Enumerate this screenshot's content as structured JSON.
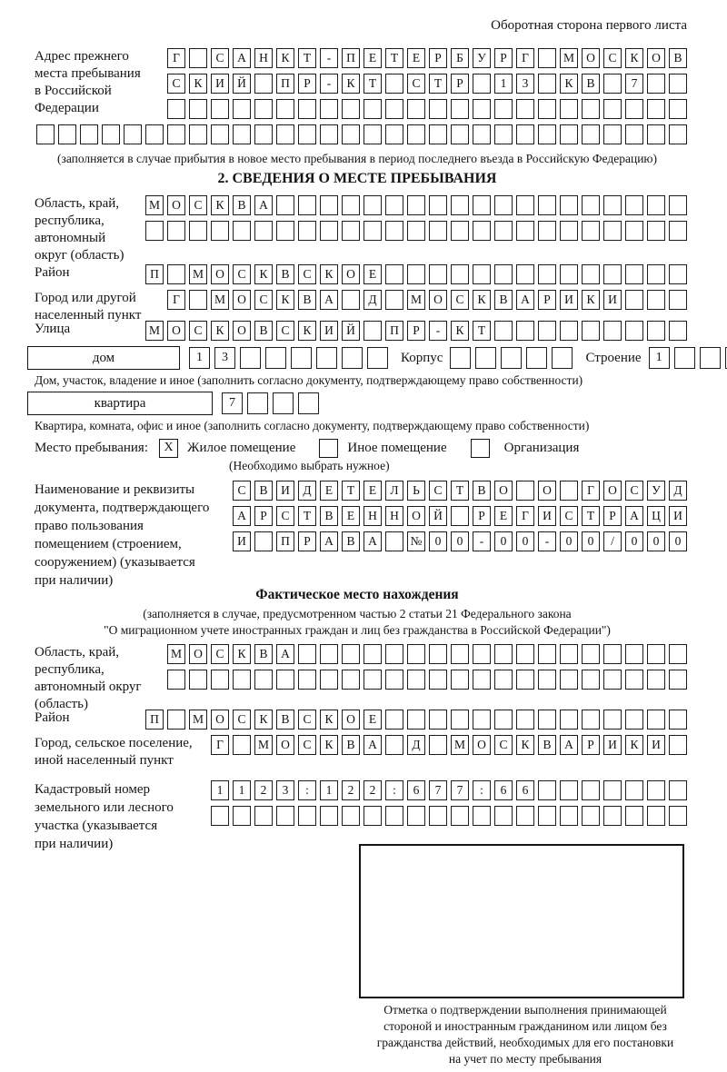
{
  "page_note": "Оборотная сторона первого листа",
  "address_prev": {
    "label": [
      "Адрес прежнего",
      "места пребывания",
      "в Российской",
      "Федерации"
    ],
    "row1": {
      "count": 24,
      "value": "Г САНКТ-ПЕТЕРБУРГ МОСКОВ"
    },
    "row2": {
      "count": 24,
      "value": "СКИЙ ПР-КТ СТР 13 КВ 7"
    },
    "row3": {
      "count": 24,
      "value": ""
    },
    "row4": {
      "count": 30,
      "value": ""
    },
    "caption": "(заполняется в случае прибытия в новое место пребывания в период последнего въезда в Российскую Федерацию)"
  },
  "section2": {
    "title": "2. СВЕДЕНИЯ О МЕСТЕ ПРЕБЫВАНИЯ",
    "oblast": {
      "label": [
        "Область, край,",
        "республика,",
        "автономный",
        "округ (область)"
      ],
      "row1": {
        "count": 25,
        "value": "МОСКВА"
      },
      "row2": {
        "count": 25,
        "value": ""
      }
    },
    "rajon": {
      "label": "Район",
      "row": {
        "count": 25,
        "value": "П МОСКВСКОЕ"
      }
    },
    "gorod": {
      "label": [
        "Город или другой",
        "населенный пункт"
      ],
      "row": {
        "count": 24,
        "value": "Г МОСКВА Д МОСКВАРИКИ"
      }
    },
    "ulitsa": {
      "label": "Улица",
      "row": {
        "count": 25,
        "value": "МОСКОВСКИЙ ПР-КТ"
      }
    },
    "dom": {
      "label": "дом",
      "cells": {
        "count": 8,
        "value": "13"
      },
      "korpus_label": "Корпус",
      "korpus_cells": {
        "count": 5,
        "value": ""
      },
      "stroenie_label": "Строение",
      "stroenie_cells": {
        "count": 4,
        "value": "1"
      }
    },
    "dom_caption": "Дом, участок, владение и иное (заполнить согласно документу, подтверждающему право собственности)",
    "kvartira": {
      "label": "квартира",
      "cells": {
        "count": 4,
        "value": "7"
      }
    },
    "kvartira_caption": "Квартира, комната, офис и иное (заполнить согласно документу, подтверждающему право собственности)",
    "mesto": {
      "label": "Место пребывания:",
      "options": [
        {
          "label": "Жилое помещение",
          "checked": "X"
        },
        {
          "label": "Иное помещение",
          "checked": ""
        },
        {
          "label": "Организация",
          "checked": ""
        }
      ],
      "note": "(Необходимо выбрать нужное)"
    },
    "doc": {
      "label": [
        "Наименование и реквизиты",
        "документа, подтверждающего",
        "право пользования",
        "помещением (строением,",
        "сооружением) (указывается",
        "при наличии)"
      ],
      "row1": {
        "count": 21,
        "value": "СВИДЕТЕЛЬСТВО О ГОСУД"
      },
      "row2": {
        "count": 21,
        "value": "АРСТВЕННОЙ РЕГИСТРАЦИ"
      },
      "row3": {
        "count": 21,
        "value": "И ПРАВА №00-00-00/000"
      }
    }
  },
  "fact": {
    "title": "Фактическое место нахождения",
    "caption": [
      "(заполняется в случае, предусмотренном частью 2 статьи 21 Федерального закона",
      "\"О миграционном учете иностранных граждан и лиц без гражданства в Российской Федерации\")"
    ],
    "oblast": {
      "label": [
        "Область, край,",
        "республика,",
        "автономный округ",
        "(область)"
      ],
      "row1": {
        "count": 24,
        "value": "МОСКВА"
      },
      "row2": {
        "count": 24,
        "value": ""
      }
    },
    "rajon": {
      "label": "Район",
      "row": {
        "count": 25,
        "value": "П МОСКВСКОЕ"
      }
    },
    "gorod": {
      "label": [
        "Город, сельское поселение,",
        "иной населенный пункт"
      ],
      "row": {
        "count": 22,
        "value": "Г МОСКВА Д МОСКВАРИКИ"
      }
    },
    "kadastr": {
      "label": [
        "Кадастровый номер",
        "земельного или лесного",
        "участка (указывается",
        "при наличии)"
      ],
      "row1": {
        "count": 22,
        "value": "1123:122:677:66"
      },
      "row2": {
        "count": 22,
        "value": ""
      }
    },
    "stamp_caption": [
      "Отметка о подтверждении выполнения принимающей",
      "стороной и иностранным гражданином или лицом без",
      "гражданства действий, необходимых для его постановки",
      "на учет по месту пребывания"
    ]
  }
}
